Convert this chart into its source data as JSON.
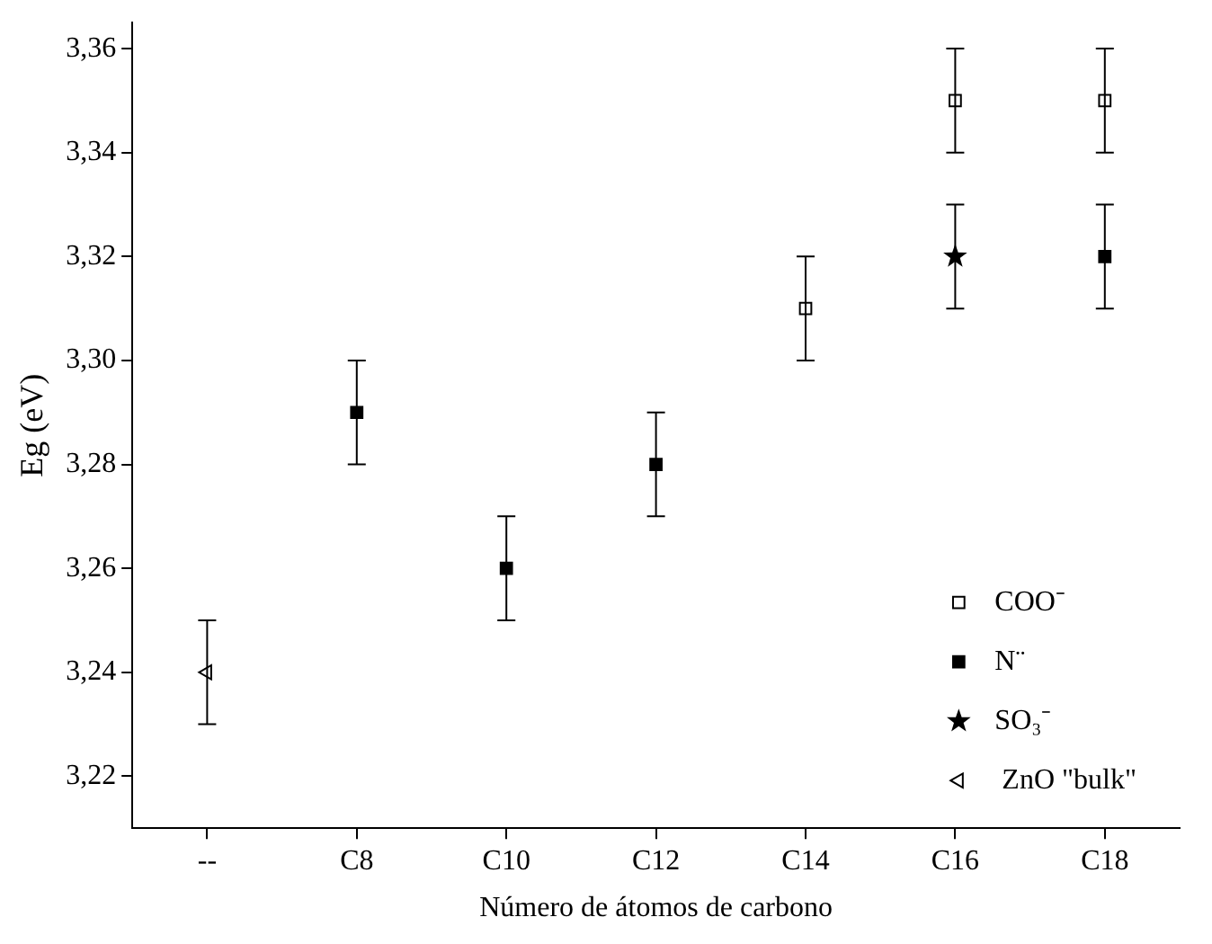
{
  "chart_data": {
    "type": "scatter",
    "xlabel": "Número de átomos de carbono",
    "ylabel": "Eg (eV)",
    "categories": [
      "--",
      "C8",
      "C10",
      "C12",
      "C14",
      "C16",
      "C18"
    ],
    "series": [
      {
        "name": "COO⁻",
        "color": "#000000",
        "marker": "square",
        "values": [
          null,
          null,
          null,
          null,
          3.31,
          3.35,
          3.35
        ],
        "errors": [
          null,
          null,
          null,
          null,
          0.01,
          0.01,
          0.01
        ]
      },
      {
        "name": "N¨",
        "color": "#000000",
        "marker": "square",
        "values": [
          null,
          3.29,
          3.26,
          3.28,
          null,
          null,
          3.32
        ],
        "errors": [
          null,
          0.01,
          0.01,
          0.01,
          null,
          null,
          0.01
        ]
      },
      {
        "name": "SO₃⁻",
        "color": "#000000",
        "marker": "star",
        "values": [
          null,
          null,
          null,
          null,
          null,
          3.32,
          null
        ],
        "errors": [
          null,
          null,
          null,
          null,
          null,
          0.01,
          null
        ]
      },
      {
        "name": " ZnO \"bulk\"",
        "color": "#000000",
        "marker": "triangle",
        "values": [
          3.24,
          null,
          null,
          null,
          null,
          null,
          null
        ],
        "errors": [
          0.01,
          null,
          null,
          null,
          null,
          null,
          null
        ]
      }
    ],
    "ylim": [
      3.21,
      3.365
    ],
    "yticks": [
      {
        "value": 3.22,
        "label": "3,22"
      },
      {
        "value": 3.24,
        "label": "3,24"
      },
      {
        "value": 3.26,
        "label": "3,26"
      },
      {
        "value": 3.28,
        "label": "3,28"
      },
      {
        "value": 3.3,
        "label": "3,30"
      },
      {
        "value": 3.32,
        "label": "3,32"
      },
      {
        "value": 3.34,
        "label": "3,34"
      },
      {
        "value": 3.36,
        "label": "3,36"
      }
    ],
    "grid": false,
    "legend": "bottom right"
  }
}
